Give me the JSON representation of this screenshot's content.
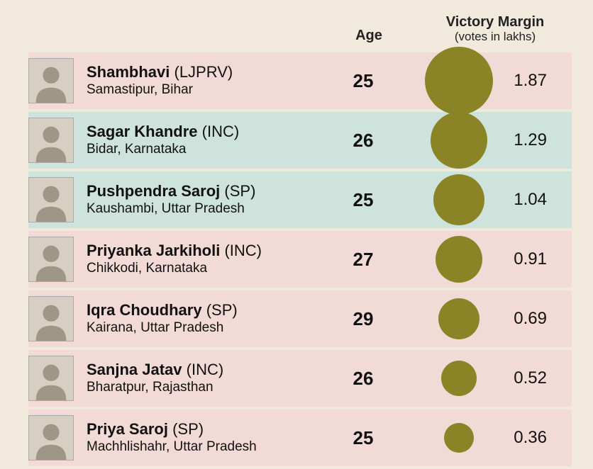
{
  "header": {
    "age": "Age",
    "margin_title": "Victory Margin",
    "margin_sub": "(votes in lakhs)"
  },
  "colors": {
    "bubble": "#8a8426",
    "row_pink": "#f2dbd6",
    "row_teal": "#cfe3dd",
    "bg": "#f0e9dc"
  },
  "bubble_scale": 48,
  "rows": [
    {
      "name": "Shambhavi",
      "party": "(LJPRV)",
      "constituency": "Samastipur",
      "state": "Bihar",
      "age": "25",
      "margin": 1.87,
      "margin_label": "1.87",
      "row_color": "pink"
    },
    {
      "name": "Sagar Khandre",
      "party": "(INC)",
      "constituency": "Bidar",
      "state": "Karnataka",
      "age": "26",
      "margin": 1.29,
      "margin_label": "1.29",
      "row_color": "teal"
    },
    {
      "name": "Pushpendra Saroj",
      "party": "(SP)",
      "constituency": "Kaushambi",
      "state": "Uttar Pradesh",
      "age": "25",
      "margin": 1.04,
      "margin_label": "1.04",
      "row_color": "teal"
    },
    {
      "name": "Priyanka Jarkiholi",
      "party": "(INC)",
      "constituency": "Chikkodi",
      "state": "Karnataka",
      "age": "27",
      "margin": 0.91,
      "margin_label": "0.91",
      "row_color": "pink"
    },
    {
      "name": "Iqra Choudhary",
      "party": "(SP)",
      "constituency": "Kairana",
      "state": "Uttar Pradesh",
      "age": "29",
      "margin": 0.69,
      "margin_label": "0.69",
      "row_color": "pink"
    },
    {
      "name": "Sanjna Jatav",
      "party": "(INC)",
      "constituency": "Bharatpur",
      "state": "Rajasthan",
      "age": "26",
      "margin": 0.52,
      "margin_label": "0.52",
      "row_color": "pink"
    },
    {
      "name": "Priya Saroj",
      "party": "(SP)",
      "constituency": "Machhlishahr",
      "state": "Uttar Pradesh",
      "age": "25",
      "margin": 0.36,
      "margin_label": "0.36",
      "row_color": "pink"
    }
  ]
}
